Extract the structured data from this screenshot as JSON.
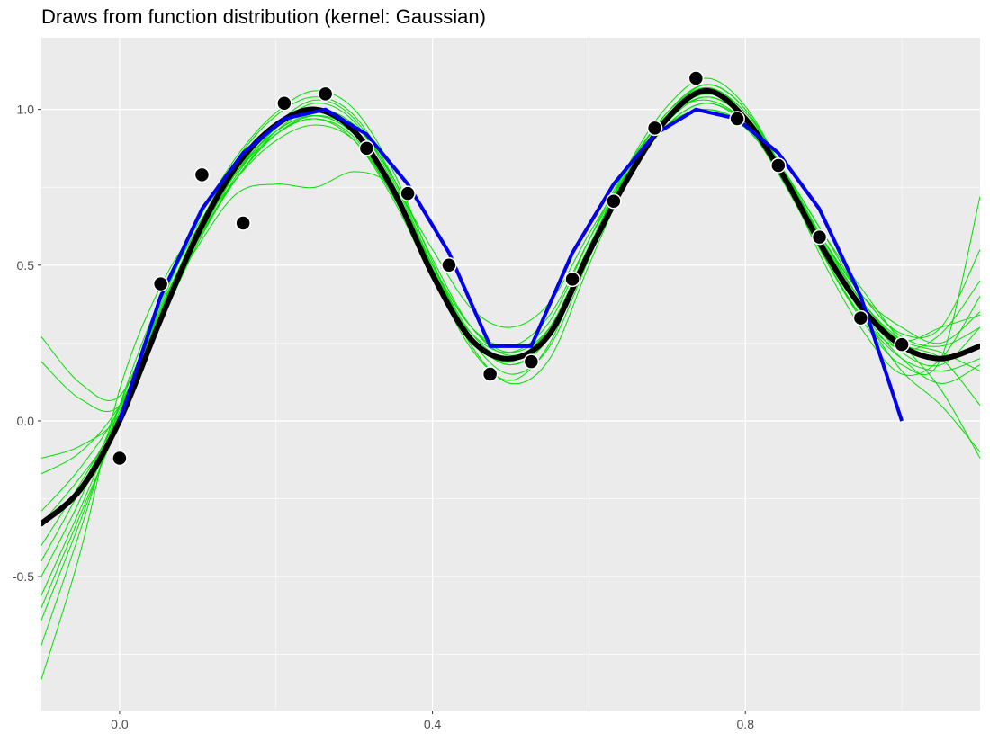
{
  "chart_data": {
    "type": "line",
    "title": "Draws from function distribution (kernel: Gaussian)",
    "xlabel": "",
    "ylabel": "",
    "xlim": [
      -0.1,
      1.1
    ],
    "ylim": [
      -0.93,
      1.23
    ],
    "x_ticks": [
      0.0,
      0.4,
      0.8
    ],
    "x_tick_labels": [
      "0.0",
      "0.4",
      "0.8"
    ],
    "x_minor_ticks": [
      0.2,
      0.6,
      1.0
    ],
    "y_ticks": [
      -0.5,
      0.0,
      0.5,
      1.0
    ],
    "y_tick_labels": [
      "-0.5",
      "0.0",
      "0.5",
      "1.0"
    ],
    "y_minor_ticks": [
      -0.75,
      -0.25,
      0.25,
      0.75
    ],
    "grid": true,
    "legend": "none",
    "colors": {
      "panel": "#ebebeb",
      "grid": "#ffffff",
      "draws": "#00e000",
      "mean": "#000000",
      "interpolation": "#0000ee",
      "points": "#000000"
    },
    "observations": {
      "x": [
        0.0,
        0.0526,
        0.1053,
        0.1579,
        0.2105,
        0.2632,
        0.3158,
        0.3684,
        0.4211,
        0.4737,
        0.5263,
        0.5789,
        0.6316,
        0.6842,
        0.7368,
        0.7895,
        0.8421,
        0.8947,
        0.9474,
        1.0
      ],
      "y": [
        -0.12,
        0.44,
        0.79,
        0.635,
        1.02,
        1.05,
        0.875,
        0.73,
        0.5,
        0.15,
        0.19,
        0.455,
        0.705,
        0.94,
        1.1,
        0.97,
        0.82,
        0.59,
        0.33,
        0.245
      ]
    },
    "interpolation_line": {
      "x": [
        0.0,
        0.0526,
        0.1053,
        0.1579,
        0.2105,
        0.2632,
        0.3158,
        0.3684,
        0.4211,
        0.4737,
        0.5263,
        0.5789,
        0.6316,
        0.6842,
        0.7368,
        0.7895,
        0.8421,
        0.8947,
        0.9474,
        1.0
      ],
      "y": [
        0.0,
        0.4,
        0.68,
        0.86,
        0.97,
        1.0,
        0.92,
        0.76,
        0.54,
        0.24,
        0.24,
        0.54,
        0.76,
        0.92,
        1.0,
        0.97,
        0.86,
        0.68,
        0.4,
        0.0
      ]
    },
    "mean_curve": {
      "x": [
        -0.1,
        -0.05,
        0.0,
        0.05,
        0.1,
        0.15,
        0.2,
        0.25,
        0.3,
        0.35,
        0.4,
        0.45,
        0.5,
        0.55,
        0.6,
        0.65,
        0.7,
        0.75,
        0.8,
        0.85,
        0.9,
        0.95,
        1.0,
        1.05,
        1.1
      ],
      "y": [
        -0.33,
        -0.22,
        0.0,
        0.31,
        0.6,
        0.82,
        0.95,
        1.0,
        0.93,
        0.74,
        0.47,
        0.26,
        0.2,
        0.28,
        0.54,
        0.78,
        0.97,
        1.06,
        0.97,
        0.78,
        0.55,
        0.36,
        0.24,
        0.2,
        0.24
      ]
    },
    "draws": [
      {
        "y": [
          -0.83,
          -0.42,
          0.1,
          0.42,
          0.63,
          0.8,
          0.92,
          0.97,
          0.9,
          0.71,
          0.46,
          0.25,
          0.2,
          0.3,
          0.56,
          0.8,
          0.97,
          1.05,
          0.98,
          0.8,
          0.57,
          0.36,
          0.22,
          0.18,
          0.3
        ]
      },
      {
        "y": [
          -0.72,
          -0.35,
          0.05,
          0.38,
          0.62,
          0.82,
          0.95,
          1.0,
          0.93,
          0.74,
          0.48,
          0.27,
          0.18,
          0.28,
          0.55,
          0.81,
          0.99,
          1.07,
          0.99,
          0.8,
          0.55,
          0.34,
          0.16,
          0.05,
          -0.1
        ]
      },
      {
        "y": [
          -0.64,
          -0.32,
          0.02,
          0.37,
          0.62,
          0.8,
          0.94,
          1.02,
          0.96,
          0.76,
          0.47,
          0.23,
          0.13,
          0.25,
          0.55,
          0.82,
          1.01,
          1.1,
          1.01,
          0.79,
          0.53,
          0.32,
          0.18,
          0.2,
          0.72
        ]
      },
      {
        "y": [
          -0.6,
          -0.3,
          0.0,
          0.34,
          0.6,
          0.78,
          0.9,
          0.95,
          0.9,
          0.72,
          0.47,
          0.28,
          0.22,
          0.32,
          0.58,
          0.82,
          0.98,
          1.03,
          0.96,
          0.79,
          0.58,
          0.4,
          0.3,
          0.25,
          0.35
        ]
      },
      {
        "y": [
          -0.56,
          -0.28,
          0.02,
          0.35,
          0.6,
          0.8,
          0.93,
          0.98,
          0.92,
          0.74,
          0.5,
          0.3,
          0.22,
          0.3,
          0.54,
          0.78,
          0.95,
          1.02,
          0.96,
          0.8,
          0.6,
          0.42,
          0.25,
          0.1,
          -0.12
        ]
      },
      {
        "y": [
          -0.5,
          -0.25,
          0.05,
          0.34,
          0.56,
          0.73,
          0.76,
          0.75,
          0.8,
          0.75,
          0.55,
          0.36,
          0.3,
          0.38,
          0.6,
          0.8,
          0.95,
          1.0,
          0.95,
          0.8,
          0.6,
          0.4,
          0.28,
          0.3,
          0.55
        ]
      },
      {
        "y": [
          -0.45,
          -0.22,
          0.03,
          0.32,
          0.58,
          0.78,
          0.92,
          0.97,
          0.91,
          0.72,
          0.47,
          0.26,
          0.19,
          0.3,
          0.56,
          0.8,
          0.97,
          1.04,
          0.97,
          0.79,
          0.56,
          0.35,
          0.2,
          0.12,
          0.18
        ]
      },
      {
        "y": [
          -0.4,
          -0.2,
          0.02,
          0.3,
          0.57,
          0.79,
          0.94,
          1.0,
          0.94,
          0.75,
          0.49,
          0.27,
          0.18,
          0.27,
          0.53,
          0.79,
          0.97,
          1.05,
          0.98,
          0.8,
          0.58,
          0.38,
          0.25,
          0.2,
          0.05
        ]
      },
      {
        "y": [
          -0.33,
          -0.18,
          0.0,
          0.3,
          0.58,
          0.8,
          0.95,
          1.03,
          0.97,
          0.77,
          0.49,
          0.24,
          0.12,
          0.2,
          0.5,
          0.78,
          0.98,
          1.08,
          1.0,
          0.78,
          0.51,
          0.29,
          0.15,
          0.2,
          0.4
        ]
      },
      {
        "y": [
          -0.29,
          -0.15,
          0.04,
          0.33,
          0.6,
          0.8,
          0.93,
          0.98,
          0.92,
          0.74,
          0.5,
          0.3,
          0.24,
          0.34,
          0.58,
          0.8,
          0.95,
          1.0,
          0.94,
          0.78,
          0.58,
          0.4,
          0.27,
          0.24,
          0.3
        ]
      },
      {
        "y": [
          -0.17,
          -0.1,
          0.05,
          0.32,
          0.58,
          0.78,
          0.92,
          0.98,
          0.93,
          0.75,
          0.5,
          0.28,
          0.2,
          0.3,
          0.55,
          0.78,
          0.95,
          1.02,
          0.95,
          0.76,
          0.53,
          0.33,
          0.2,
          0.16,
          0.2
        ]
      },
      {
        "y": [
          -0.12,
          -0.08,
          0.02,
          0.3,
          0.57,
          0.78,
          0.93,
          1.0,
          0.95,
          0.78,
          0.52,
          0.3,
          0.21,
          0.29,
          0.54,
          0.78,
          0.96,
          1.04,
          0.97,
          0.79,
          0.57,
          0.38,
          0.26,
          0.22,
          0.16
        ]
      },
      {
        "y": [
          0.19,
          0.07,
          0.05,
          0.34,
          0.62,
          0.84,
          0.98,
          1.04,
          0.98,
          0.78,
          0.5,
          0.27,
          0.18,
          0.27,
          0.53,
          0.79,
          0.97,
          1.06,
          0.99,
          0.8,
          0.58,
          0.38,
          0.26,
          0.3,
          0.34
        ]
      },
      {
        "y": [
          0.27,
          0.12,
          0.08,
          0.36,
          0.64,
          0.85,
          0.99,
          1.06,
          1.0,
          0.8,
          0.51,
          0.26,
          0.15,
          0.24,
          0.52,
          0.8,
          0.99,
          1.08,
          1.0,
          0.79,
          0.53,
          0.33,
          0.23,
          0.28,
          0.45
        ]
      }
    ]
  }
}
